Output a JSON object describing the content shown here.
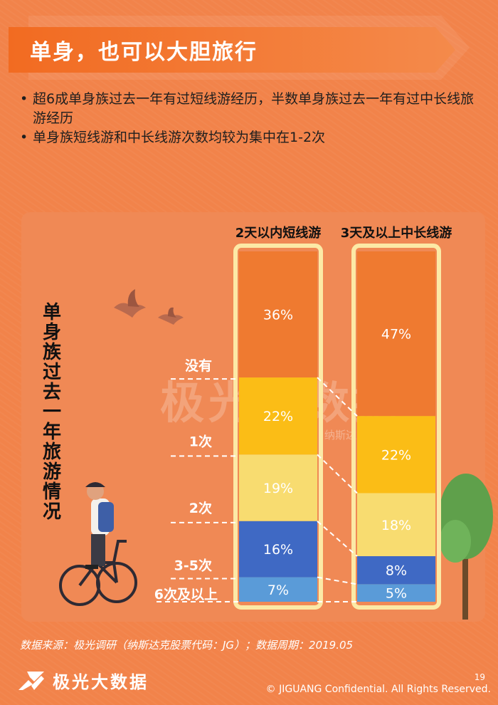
{
  "header": {
    "title": "单身，也可以大胆旅行"
  },
  "bullets": [
    "超6成单身族过去一年有过短线游经历，半数单身族过去一年有过中长线旅游经历",
    "单身族短线游和中长线游次数均较为集中在1-2次"
  ],
  "vertical_label": "单身族过去一年旅游情况",
  "chart_data": {
    "type": "bar",
    "stacked": true,
    "categories": [
      "2天以内短线游",
      "3天及以上中长线游"
    ],
    "series": [
      {
        "name": "没有",
        "values": [
          36,
          47
        ],
        "color": "#EF7A30"
      },
      {
        "name": "1次",
        "values": [
          22,
          22
        ],
        "color": "#FBBD16"
      },
      {
        "name": "2次",
        "values": [
          19,
          18
        ],
        "color": "#F8DC70"
      },
      {
        "name": "3-5次",
        "values": [
          16,
          8
        ],
        "color": "#3F69C4"
      },
      {
        "name": "6次及以上",
        "values": [
          7,
          5
        ],
        "color": "#5A9BD8"
      }
    ],
    "value_labels": [
      [
        "36%",
        "22%",
        "19%",
        "16%",
        "7%"
      ],
      [
        "47%",
        "22%",
        "18%",
        "8%",
        "5%"
      ]
    ],
    "ylim": [
      0,
      100
    ],
    "legend": "left"
  },
  "watermark": {
    "text": "极光大数据",
    "sub": "纳斯达克股票代码：JG"
  },
  "footer": {
    "source": "数据来源：极光调研（纳斯达克股票代码：JG）；数据周期：2019.05",
    "logo_text": "极光大数据",
    "page": "19",
    "copyright": "© JIGUANG Confidential. All Rights Reserved."
  },
  "colors": {
    "background": "#F2834A",
    "bar_border": "#FCE9A6",
    "connector": "#FFFFFF"
  }
}
